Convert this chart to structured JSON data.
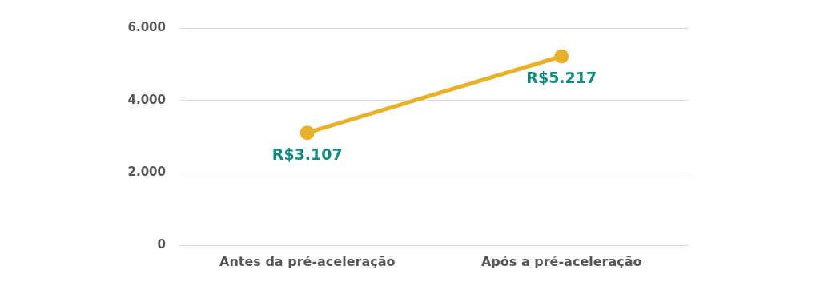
{
  "chart_data": {
    "type": "line",
    "categories": [
      "Antes da pré-aceleração",
      "Após a pré-aceleração"
    ],
    "series": [
      {
        "color": "#e9b02b",
        "values": [
          3107,
          5217
        ],
        "value_labels": [
          "R$3.107",
          "R$5.217"
        ]
      }
    ],
    "ylim": [
      0,
      6000
    ],
    "yticks": [
      {
        "value": 0,
        "label": "0"
      },
      {
        "value": 2000,
        "label": "2.000"
      },
      {
        "value": 4000,
        "label": "4.000"
      },
      {
        "value": 6000,
        "label": "6.000"
      }
    ],
    "grid": "y",
    "legend": false,
    "marker": "circle",
    "line_style": "solid"
  }
}
